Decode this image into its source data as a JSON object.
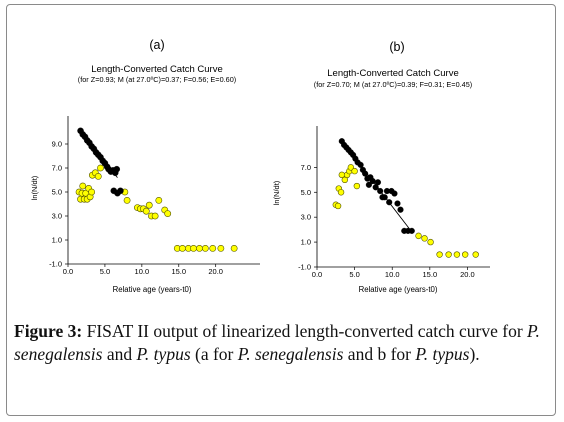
{
  "caption": {
    "label": "Figure 3:",
    "t1": " FISAT II output of linearized length-converted catch curve for ",
    "sp1": "P. senegalensis",
    "t2": " and ",
    "sp2": "P. typus",
    "t3": " (a for ",
    "sp3": "P. senegalensis",
    "t4": " and b for ",
    "sp4": "P. typus",
    "t5": ")."
  },
  "colors": {
    "included": "#000000",
    "excluded": "#ffff00",
    "excluded_edge": "#555500",
    "axis": "#000000"
  },
  "chart_data": [
    {
      "type": "scatter",
      "panel_label": "(a)",
      "title": "Length-Converted Catch Curve",
      "subtitle": "(for Z=0.93; M (at 27.0ºC)=0.37; F=0.56; E=0.60)",
      "xlabel": "Relative age (years-t0)",
      "ylabel": "ln(N/dt)",
      "xlim": [
        0,
        26
      ],
      "ylim": [
        -1.0,
        11.0
      ],
      "xticks": [
        0,
        5,
        10,
        15,
        20
      ],
      "xtick_labels": [
        "0.0",
        "5.0",
        "10.0",
        "15.0",
        "20.0"
      ],
      "yticks": [
        -1,
        1,
        3,
        5,
        7,
        9
      ],
      "ytick_labels": [
        "-1.0",
        "1.0",
        "3.0",
        "5.0",
        "7.0",
        "9.0"
      ],
      "grid": false,
      "regression_line": {
        "x": [
          1.5,
          6.7
        ],
        "y": [
          10.2,
          6.2
        ]
      },
      "series": [
        {
          "role": "included",
          "points": [
            [
              1.7,
              10.1
            ],
            [
              2.0,
              9.8
            ],
            [
              2.3,
              9.6
            ],
            [
              2.6,
              9.3
            ],
            [
              2.9,
              9.1
            ],
            [
              3.2,
              8.8
            ],
            [
              3.5,
              8.6
            ],
            [
              3.8,
              8.3
            ],
            [
              4.1,
              8.1
            ],
            [
              4.4,
              7.9
            ],
            [
              4.7,
              7.6
            ],
            [
              5.0,
              7.4
            ],
            [
              5.3,
              7.1
            ],
            [
              5.5,
              6.9
            ],
            [
              5.8,
              6.7
            ],
            [
              6.1,
              6.8
            ],
            [
              6.4,
              6.6
            ],
            [
              6.6,
              6.9
            ],
            [
              6.2,
              5.1
            ],
            [
              6.7,
              4.9
            ],
            [
              7.1,
              5.1
            ]
          ]
        },
        {
          "role": "excluded",
          "points": [
            [
              1.5,
              5.0
            ],
            [
              1.7,
              4.4
            ],
            [
              1.9,
              4.9
            ],
            [
              2.0,
              5.5
            ],
            [
              2.2,
              4.4
            ],
            [
              2.4,
              4.9
            ],
            [
              2.6,
              4.4
            ],
            [
              2.8,
              5.3
            ],
            [
              3.0,
              4.6
            ],
            [
              3.2,
              5.0
            ],
            [
              3.3,
              6.4
            ],
            [
              3.7,
              6.6
            ],
            [
              4.1,
              6.3
            ],
            [
              4.4,
              7.0
            ],
            [
              7.7,
              5.0
            ],
            [
              8.0,
              4.3
            ],
            [
              9.4,
              3.7
            ],
            [
              9.8,
              3.6
            ],
            [
              10.2,
              3.6
            ],
            [
              10.6,
              3.4
            ],
            [
              11.0,
              3.9
            ],
            [
              11.3,
              3.0
            ],
            [
              11.8,
              3.0
            ],
            [
              12.3,
              4.3
            ],
            [
              13.1,
              3.5
            ],
            [
              13.5,
              3.2
            ],
            [
              14.8,
              0.3
            ],
            [
              15.5,
              0.3
            ],
            [
              16.3,
              0.3
            ],
            [
              17.0,
              0.3
            ],
            [
              17.8,
              0.3
            ],
            [
              18.6,
              0.3
            ],
            [
              19.6,
              0.3
            ],
            [
              20.7,
              0.3
            ],
            [
              22.5,
              0.3
            ]
          ]
        }
      ]
    },
    {
      "type": "scatter",
      "panel_label": "(b)",
      "title": "Length-Converted Catch Curve",
      "subtitle": "(for Z=0.70; M (at 27.0ºC)=0.39; F=0.31; E=0.45)",
      "xlabel": "Relative age (years-t0)",
      "ylabel": "ln(N/dt)",
      "xlim": [
        0,
        23
      ],
      "ylim": [
        -1.0,
        10.0
      ],
      "xticks": [
        0,
        5,
        10,
        15,
        20
      ],
      "xtick_labels": [
        "0.0",
        "5.0",
        "10.0",
        "15.0",
        "20.0"
      ],
      "yticks": [
        -1,
        1,
        3,
        5,
        7
      ],
      "ytick_labels": [
        "-1.0",
        "1.0",
        "3.0",
        "5.0",
        "7.0"
      ],
      "grid": false,
      "regression_line": {
        "x": [
          3.2,
          12.5
        ],
        "y": [
          9.2,
          1.9
        ]
      },
      "series": [
        {
          "role": "included",
          "points": [
            [
              3.3,
              9.1
            ],
            [
              3.6,
              8.8
            ],
            [
              3.9,
              8.6
            ],
            [
              4.2,
              8.4
            ],
            [
              4.5,
              8.2
            ],
            [
              4.8,
              8.0
            ],
            [
              5.1,
              7.7
            ],
            [
              5.4,
              7.4
            ],
            [
              5.8,
              7.2
            ],
            [
              6.1,
              6.8
            ],
            [
              6.4,
              6.5
            ],
            [
              6.7,
              6.1
            ],
            [
              6.9,
              5.6
            ],
            [
              7.1,
              6.2
            ],
            [
              7.4,
              5.9
            ],
            [
              7.8,
              5.4
            ],
            [
              8.1,
              5.8
            ],
            [
              8.4,
              5.1
            ],
            [
              8.7,
              4.6
            ],
            [
              9.0,
              4.6
            ],
            [
              9.3,
              5.1
            ],
            [
              9.6,
              4.2
            ],
            [
              9.9,
              5.1
            ],
            [
              10.3,
              4.9
            ],
            [
              10.7,
              4.1
            ],
            [
              11.1,
              3.6
            ],
            [
              11.6,
              1.9
            ],
            [
              12.1,
              1.9
            ],
            [
              12.6,
              1.9
            ]
          ]
        },
        {
          "role": "excluded",
          "points": [
            [
              2.5,
              4.0
            ],
            [
              2.8,
              3.9
            ],
            [
              2.9,
              5.3
            ],
            [
              3.2,
              5.0
            ],
            [
              3.3,
              6.4
            ],
            [
              3.7,
              6.0
            ],
            [
              4.0,
              6.4
            ],
            [
              4.3,
              6.7
            ],
            [
              4.5,
              7.0
            ],
            [
              5.0,
              6.7
            ],
            [
              5.3,
              5.5
            ],
            [
              13.5,
              1.5
            ],
            [
              14.3,
              1.3
            ],
            [
              15.1,
              1.0
            ],
            [
              16.3,
              0.0
            ],
            [
              17.5,
              0.0
            ],
            [
              18.6,
              0.0
            ],
            [
              19.7,
              0.0
            ],
            [
              21.1,
              0.0
            ]
          ]
        }
      ]
    }
  ]
}
